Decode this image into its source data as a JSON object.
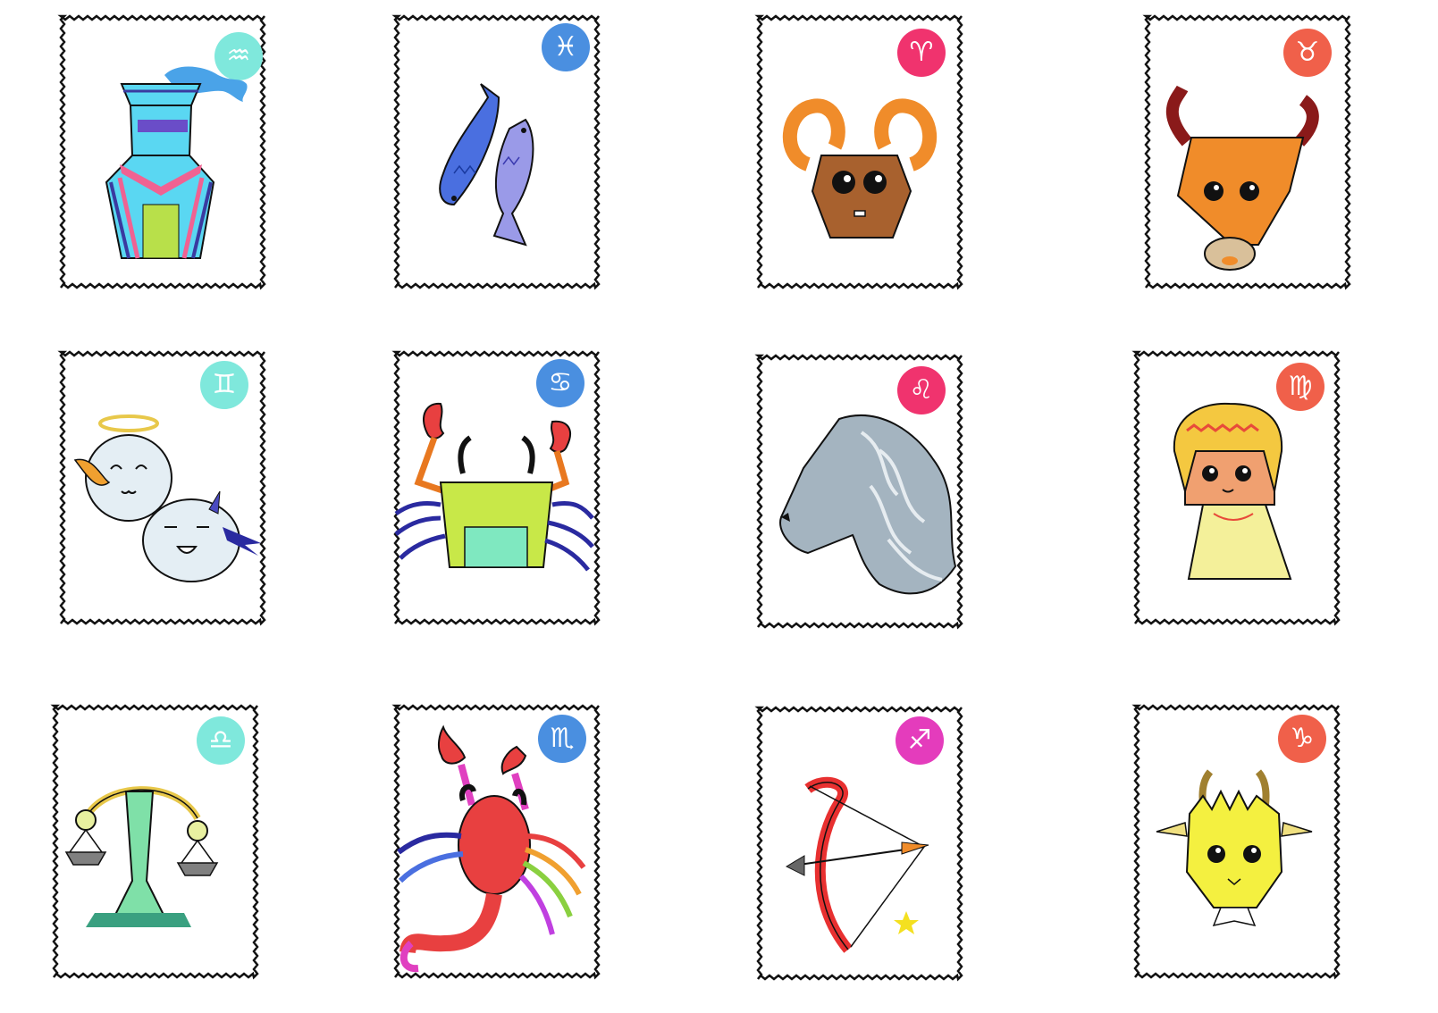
{
  "stamps": [
    {
      "name": "aquarius",
      "glyph": "♒",
      "badge_color": "#7fe8dc",
      "icon": "water-vase-icon"
    },
    {
      "name": "pisces",
      "glyph": "♓",
      "badge_color": "#4a8fe0",
      "icon": "two-fish-icon"
    },
    {
      "name": "aries",
      "glyph": "♈",
      "badge_color": "#f0336e",
      "icon": "ram-head-icon"
    },
    {
      "name": "taurus",
      "glyph": "♉",
      "badge_color": "#f0604a",
      "icon": "bull-head-icon"
    },
    {
      "name": "gemini",
      "glyph": "♊",
      "badge_color": "#7fe8dc",
      "icon": "twin-spirits-icon"
    },
    {
      "name": "cancer",
      "glyph": "♋",
      "badge_color": "#4a8fe0",
      "icon": "crab-icon"
    },
    {
      "name": "leo",
      "glyph": "♌",
      "badge_color": "#f0336e",
      "icon": "lion-head-icon"
    },
    {
      "name": "virgo",
      "glyph": "♍",
      "badge_color": "#f0604a",
      "icon": "maiden-icon"
    },
    {
      "name": "libra",
      "glyph": "♎",
      "badge_color": "#7fe8dc",
      "icon": "scales-icon"
    },
    {
      "name": "scorpio",
      "glyph": "♏",
      "badge_color": "#4a8fe0",
      "icon": "scorpion-icon"
    },
    {
      "name": "sagittarius",
      "glyph": "♐",
      "badge_color": "#e43cbc",
      "icon": "bow-and-arrow-icon"
    },
    {
      "name": "capricorn",
      "glyph": "♑",
      "badge_color": "#f0604a",
      "icon": "goat-head-icon"
    }
  ]
}
